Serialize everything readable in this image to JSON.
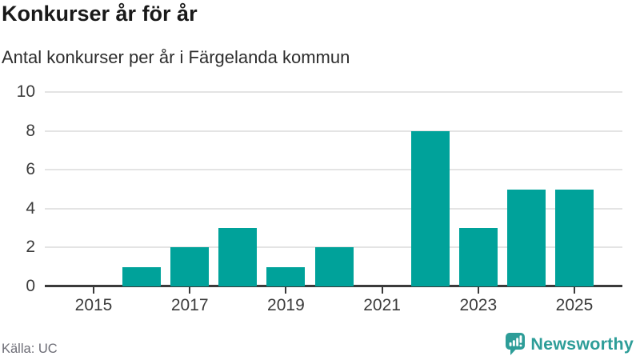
{
  "header": {
    "title": "Konkurser år för år",
    "subtitle": "Antal konkurser per år i Färgelanda kommun"
  },
  "chart_data": {
    "type": "bar",
    "title": "Konkurser år för år",
    "subtitle": "Antal konkurser per år i Färgelanda kommun",
    "categories": [
      2015,
      2016,
      2017,
      2018,
      2019,
      2020,
      2021,
      2022,
      2023,
      2024,
      2025
    ],
    "values": [
      0,
      1,
      2,
      3,
      1,
      2,
      0,
      8,
      3,
      5,
      5
    ],
    "xticks": [
      2015,
      2017,
      2019,
      2021,
      2023,
      2025
    ],
    "yticks": [
      0,
      2,
      4,
      6,
      8,
      10
    ],
    "ylim": [
      0,
      10
    ],
    "xlabel": "",
    "ylabel": "",
    "grid": "horizontal",
    "legend": false,
    "bar_color": "#00a29a"
  },
  "footer": {
    "source": "Källa: UC",
    "brand": "Newsworthy"
  },
  "colors": {
    "bar": "#00a29a",
    "brand_teal": "#2d9d98",
    "axis": "#3a3a3a",
    "gridline": "#e4e4e4",
    "title_text": "#191919",
    "source_text": "#6d6d76"
  }
}
